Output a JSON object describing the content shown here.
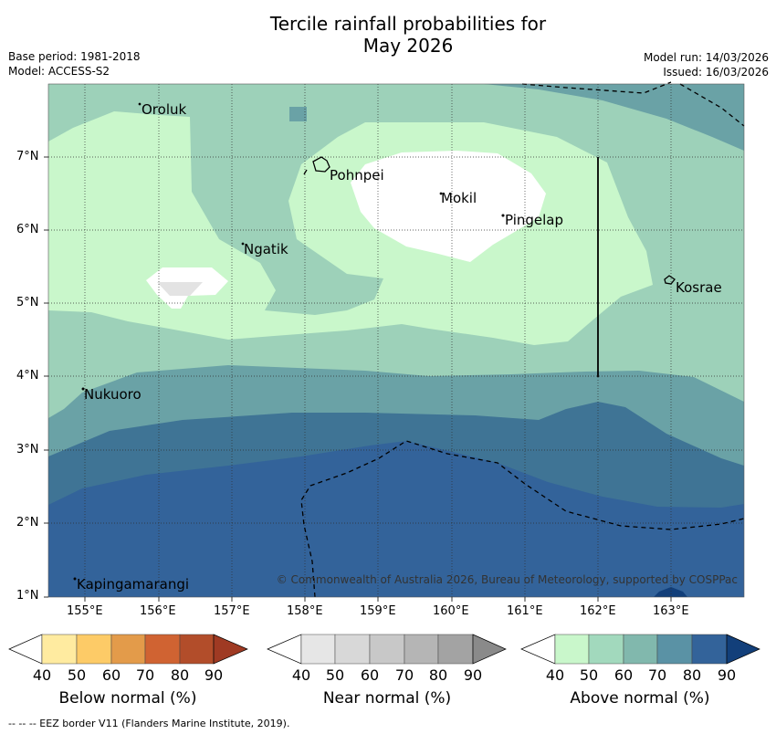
{
  "header": {
    "title_line1": "Tercile rainfall probabilities for",
    "title_line2": "May 2026",
    "base_period": "Base period: 1981-2018",
    "model": "Model: ACCESS-S2",
    "model_run": "Model run: 14/03/2026",
    "issued": "Issued: 16/03/2026"
  },
  "map": {
    "lon_ticks": [
      "155°E",
      "156°E",
      "157°E",
      "158°E",
      "159°E",
      "160°E",
      "161°E",
      "162°E",
      "163°E"
    ],
    "lat_ticks": [
      "7°N",
      "6°N",
      "5°N",
      "4°N",
      "3°N",
      "2°N",
      "1°N"
    ],
    "places": [
      "Oroluk",
      "Pohnpei",
      "Mokil",
      "Pingelap",
      "Ngatik",
      "Kosrae",
      "Nukuoro",
      "Kapingamarangi"
    ],
    "copyright": "© Commonwealth of Australia 2026, Bureau of Meteorology, supported by COSPPac",
    "colors": {
      "above_50": "#c9f7cb",
      "above_60": "#9dd1b9",
      "above_70": "#6aa2a6",
      "above_80": "#3f7495",
      "above_90": "#33639a",
      "near_50": "#e3e3e3"
    }
  },
  "colorbars": {
    "labels": [
      "40",
      "50",
      "60",
      "70",
      "80",
      "90"
    ],
    "below": {
      "title": "Below normal (%)",
      "colors": [
        "#ffffff",
        "#ffeba0",
        "#fdcb67",
        "#e39b4a",
        "#d06332",
        "#b24d2a",
        "#9f3a23"
      ]
    },
    "near": {
      "title": "Near normal (%)",
      "colors": [
        "#ffffff",
        "#e6e6e6",
        "#d8d8d8",
        "#c8c8c8",
        "#b5b5b5",
        "#a3a3a3",
        "#8a8a8a"
      ]
    },
    "above": {
      "title": "Above normal (%)",
      "colors": [
        "#ffffff",
        "#c9f7cb",
        "#a2d9bd",
        "#81b8ad",
        "#5a92a5",
        "#33639a",
        "#123f7a"
      ]
    }
  },
  "footer": {
    "legend": "--  --  -- EEZ border V11 (Flanders Marine Institute, 2019)."
  }
}
